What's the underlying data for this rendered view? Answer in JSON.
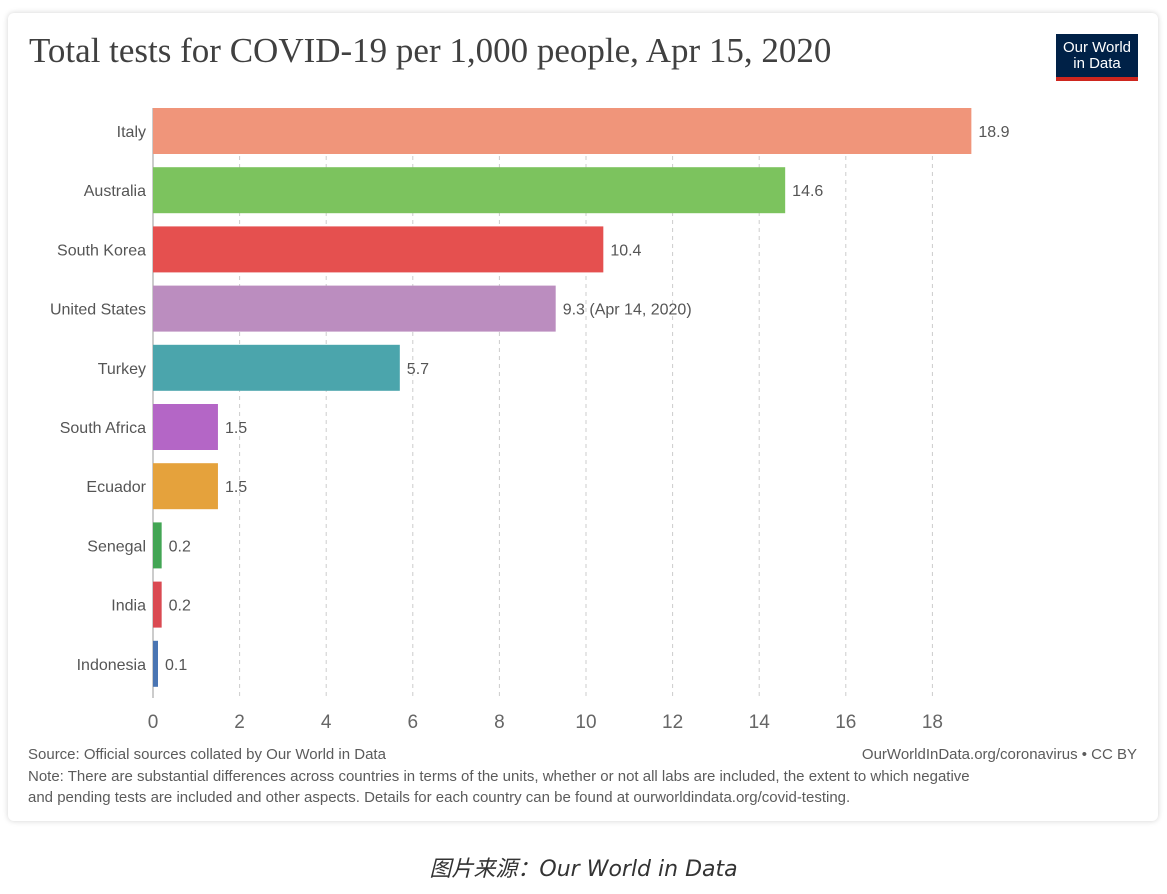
{
  "title": "Total tests for COVID-19 per 1,000 people, Apr 15, 2020",
  "logo": {
    "line1": "Our World",
    "line2": "in Data"
  },
  "chart_data": {
    "type": "bar",
    "orientation": "horizontal",
    "title": "Total tests for COVID-19 per 1,000 people, Apr 15, 2020",
    "categories": [
      "Italy",
      "Australia",
      "South Korea",
      "United States",
      "Turkey",
      "South Africa",
      "Ecuador",
      "Senegal",
      "India",
      "Indonesia"
    ],
    "values": [
      18.9,
      14.6,
      10.4,
      9.3,
      5.7,
      1.5,
      1.5,
      0.2,
      0.2,
      0.1
    ],
    "value_labels": [
      "18.9",
      "14.6",
      "10.4",
      "9.3 (Apr 14, 2020)",
      "5.7",
      "1.5",
      "1.5",
      "0.2",
      "0.2",
      "0.1"
    ],
    "colors": [
      "#f0957a",
      "#7cc35e",
      "#e5504f",
      "#bb8dbf",
      "#4ba5ac",
      "#b466c6",
      "#e5a23c",
      "#43a554",
      "#da4a52",
      "#4a75b3"
    ],
    "xlim": [
      0,
      20
    ],
    "xticks": [
      0,
      2,
      4,
      6,
      8,
      10,
      12,
      14,
      16,
      18
    ],
    "grid": true,
    "gridline_color": "#cccccc",
    "xlabel": "",
    "ylabel": ""
  },
  "footer": {
    "source": "Source: Official sources collated by Our World in Data",
    "credit": "OurWorldInData.org/coronavirus • CC BY",
    "note_line1": "Note: There are substantial differences across countries in terms of the units, whether or not all labs are included, the extent to which negative",
    "note_line2": "and pending tests are included and other aspects. Details for each country can be found at ourworldindata.org/covid-testing."
  },
  "caption": "图片来源：Our World in Data"
}
